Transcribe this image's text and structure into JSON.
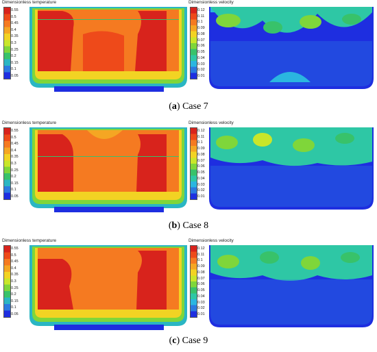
{
  "temperature_legend": {
    "title": "Dimensionless temperature",
    "ticks": [
      "0.55",
      "0.5",
      "0.45",
      "0.4",
      "0.35",
      "0.3",
      "0.25",
      "0.2",
      "0.15",
      "0.1",
      "0.05"
    ],
    "colors": [
      "#d8231c",
      "#ee4a1a",
      "#f57a21",
      "#f5a623",
      "#f2d323",
      "#c9e62a",
      "#7fd63a",
      "#38c26a",
      "#2ab6c3",
      "#2b7ae0",
      "#1e2ee0"
    ]
  },
  "velocity_legend": {
    "title": "Dimensionless velocity",
    "ticks": [
      "0.12",
      "0.11",
      "0.1",
      "0.09",
      "0.08",
      "0.07",
      "0.06",
      "0.05",
      "0.04",
      "0.03",
      "0.02",
      "0.01"
    ],
    "colors": [
      "#d8231c",
      "#ee4a1a",
      "#f57a21",
      "#f5a623",
      "#f2d323",
      "#c9e62a",
      "#7fd63a",
      "#38c26a",
      "#2ec7a5",
      "#2ab6e0",
      "#2b7ae0",
      "#1e2ee0"
    ]
  },
  "captions": [
    {
      "letter": "a",
      "text": " Case 7"
    },
    {
      "letter": "b",
      "text": " Case 8"
    },
    {
      "letter": "c",
      "text": " Case 9"
    }
  ]
}
